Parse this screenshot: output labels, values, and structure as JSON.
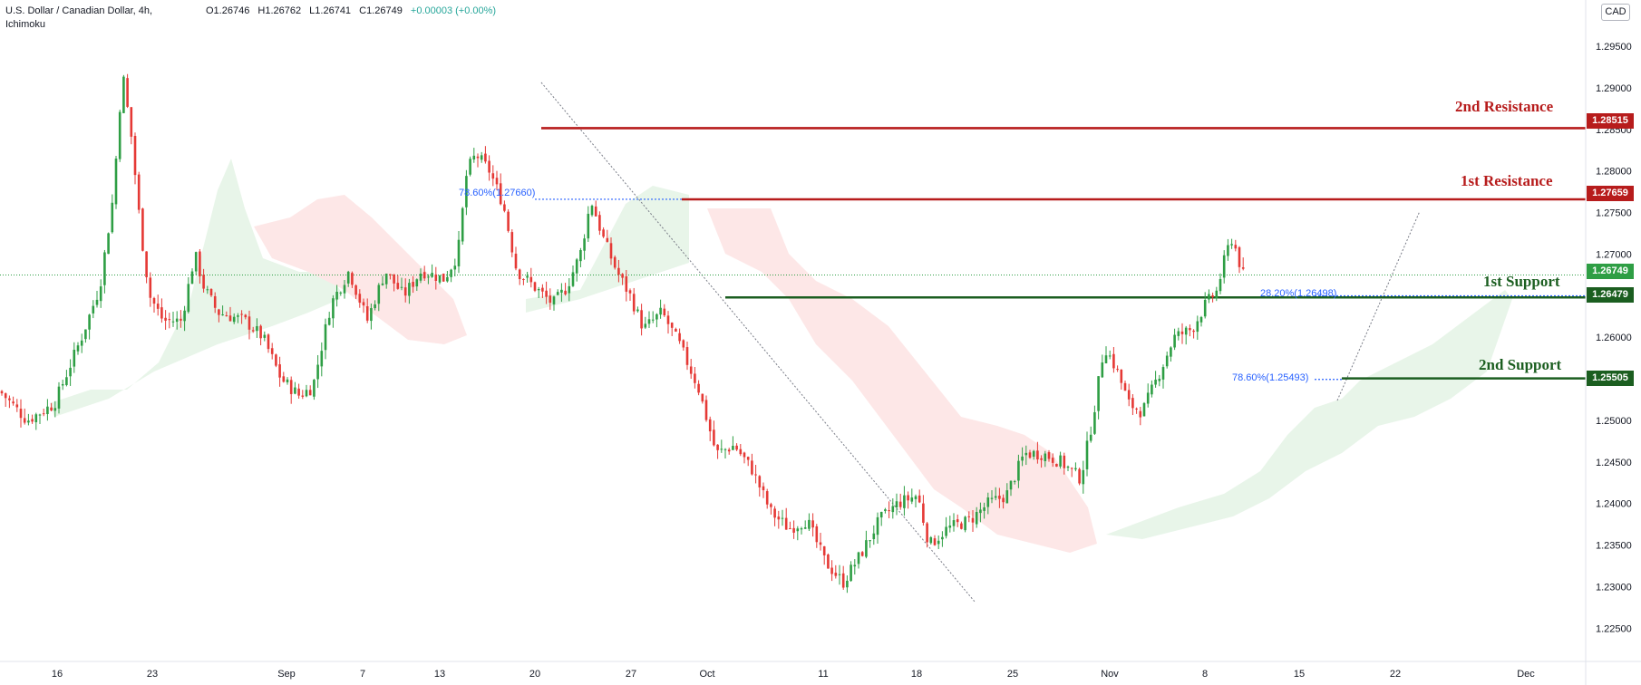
{
  "header": {
    "symbol": "U.S. Dollar / Canadian Dollar, 4h,",
    "indicator": "Ichimoku",
    "open": "O1.26746",
    "high": "H1.26762",
    "low": "L1.26741",
    "close": "C1.26749",
    "change": "+0.00003 (+0.00%)"
  },
  "currency_button": "CAD",
  "levels": {
    "r2_label": "2nd Resistance",
    "r2_price": "1.28515",
    "r1_label": "1st Resistance",
    "r1_price": "1.27659",
    "current_price": "1.26749",
    "s1_label": "1st Support",
    "s1_price": "1.26479",
    "s2_label": "2nd Support",
    "s2_price": "1.25505"
  },
  "fib_labels": {
    "fib1": "78.60%(1.27660)",
    "fib2": "28.20%(1.26498)",
    "fib3": "78.60%(1.25493)"
  },
  "colors": {
    "resistance": "#b71c1c",
    "support": "#1b5e20",
    "up_candle": "#26a69a",
    "candle_up": "#2e9e44",
    "candle_down": "#e53935",
    "fib": "#2962ff",
    "cloud_bull": "#e8f5e9",
    "cloud_bear": "#fde7e7"
  },
  "chart_data": {
    "type": "candlestick",
    "title": "U.S. Dollar / Canadian Dollar, 4h",
    "ylim": [
      1.221,
      1.2985
    ],
    "y_ticks": [
      "1.29500",
      "1.29000",
      "1.28500",
      "1.28000",
      "1.27500",
      "1.27000",
      "1.26500",
      "1.26000",
      "1.25500",
      "1.25000",
      "1.24500",
      "1.24000",
      "1.23500",
      "1.23000",
      "1.22500"
    ],
    "x_ticks": [
      "16",
      "23",
      "Sep",
      "7",
      "13",
      "20",
      "27",
      "Oct",
      "11",
      "18",
      "25",
      "Nov",
      "8",
      "15",
      "22",
      "Dec"
    ],
    "price_path": [
      [
        0,
        1.2535
      ],
      [
        30,
        1.25
      ],
      [
        60,
        1.252
      ],
      [
        90,
        1.26
      ],
      [
        110,
        1.266
      ],
      [
        125,
        1.277
      ],
      [
        135,
        1.292
      ],
      [
        145,
        1.284
      ],
      [
        155,
        1.273
      ],
      [
        165,
        1.265
      ],
      [
        180,
        1.262
      ],
      [
        200,
        1.262
      ],
      [
        215,
        1.27
      ],
      [
        225,
        1.266
      ],
      [
        240,
        1.263
      ],
      [
        270,
        1.262
      ],
      [
        290,
        1.26
      ],
      [
        310,
        1.255
      ],
      [
        330,
        1.253
      ],
      [
        345,
        1.254
      ],
      [
        365,
        1.264
      ],
      [
        385,
        1.268
      ],
      [
        405,
        1.262
      ],
      [
        425,
        1.268
      ],
      [
        445,
        1.265
      ],
      [
        465,
        1.268
      ],
      [
        490,
        1.267
      ],
      [
        505,
        1.27
      ],
      [
        515,
        1.28
      ],
      [
        525,
        1.282
      ],
      [
        540,
        1.28
      ],
      [
        555,
        1.276
      ],
      [
        570,
        1.268
      ],
      [
        590,
        1.266
      ],
      [
        610,
        1.264
      ],
      [
        625,
        1.266
      ],
      [
        640,
        1.27
      ],
      [
        652,
        1.2765
      ],
      [
        665,
        1.272
      ],
      [
        680,
        1.268
      ],
      [
        695,
        1.265
      ],
      [
        710,
        1.261
      ],
      [
        730,
        1.263
      ],
      [
        750,
        1.259
      ],
      [
        770,
        1.254
      ],
      [
        790,
        1.246
      ],
      [
        810,
        1.247
      ],
      [
        830,
        1.244
      ],
      [
        850,
        1.239
      ],
      [
        870,
        1.237
      ],
      [
        890,
        1.238
      ],
      [
        910,
        1.233
      ],
      [
        930,
        1.2305
      ],
      [
        950,
        1.234
      ],
      [
        970,
        1.238
      ],
      [
        990,
        1.24
      ],
      [
        1012,
        1.241
      ],
      [
        1025,
        1.235
      ],
      [
        1045,
        1.237
      ],
      [
        1070,
        1.238
      ],
      [
        1090,
        1.24
      ],
      [
        1110,
        1.241
      ],
      [
        1130,
        1.246
      ],
      [
        1150,
        1.246
      ],
      [
        1170,
        1.245
      ],
      [
        1192,
        1.243
      ],
      [
        1205,
        1.25
      ],
      [
        1218,
        1.259
      ],
      [
        1232,
        1.256
      ],
      [
        1245,
        1.252
      ],
      [
        1260,
        1.251
      ],
      [
        1280,
        1.256
      ],
      [
        1295,
        1.26
      ],
      [
        1315,
        1.261
      ],
      [
        1330,
        1.264
      ],
      [
        1342,
        1.2655
      ],
      [
        1350,
        1.269
      ],
      [
        1358,
        1.272
      ],
      [
        1365,
        1.27
      ],
      [
        1370,
        1.26749
      ]
    ],
    "horizontal_levels": [
      {
        "name": "2nd Resistance",
        "value": 1.28515
      },
      {
        "name": "1st Resistance",
        "value": 1.27659
      },
      {
        "name": "1st Support",
        "value": 1.26479
      },
      {
        "name": "2nd Support",
        "value": 1.25505
      }
    ],
    "current_price": 1.26749,
    "fibonacci": [
      {
        "label": "78.60%(1.27660)",
        "value": 1.2766
      },
      {
        "label": "28.20%(1.26498)",
        "value": 1.26498
      },
      {
        "label": "78.60%(1.25493)",
        "value": 1.25493
      }
    ]
  }
}
